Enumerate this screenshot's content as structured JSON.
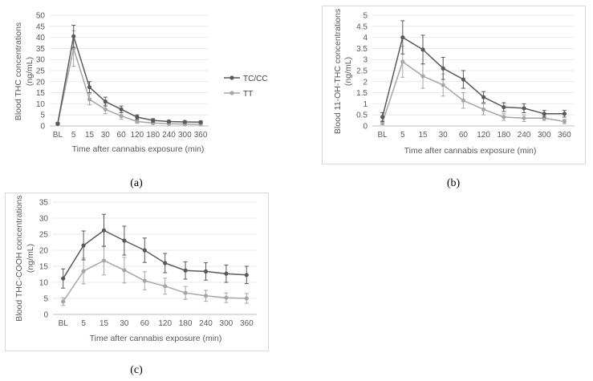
{
  "chart_data": [
    {
      "type": "line",
      "panel": "a",
      "caption": "(a)",
      "ylabel_lines": [
        "Blood THC concentrations",
        "(ng/mL)"
      ],
      "xlabel": "Time after cannabis exposure (min)",
      "categories": [
        "BL",
        "5",
        "15",
        "30",
        "60",
        "120",
        "180",
        "240",
        "300",
        "360"
      ],
      "ylim": [
        0,
        50
      ],
      "yticks": [
        0,
        5,
        10,
        15,
        20,
        25,
        30,
        35,
        40,
        45,
        50
      ],
      "legend": "right",
      "series": [
        {
          "name": "TC/CC",
          "color": "#595959",
          "values": [
            1,
            40.5,
            17.5,
            11,
            7.5,
            4,
            2.5,
            2,
            1.8,
            1.7
          ],
          "errors": [
            0.5,
            5,
            2.5,
            2,
            1.5,
            1,
            0.8,
            0.5,
            0.5,
            0.5
          ]
        },
        {
          "name": "TT",
          "color": "#a6a6a6",
          "values": [
            1,
            35,
            12,
            7.5,
            4.5,
            2,
            1.3,
            1,
            0.8,
            0.7
          ],
          "errors": [
            0.5,
            8,
            2.5,
            2,
            1.5,
            0.8,
            0.5,
            0.4,
            0.3,
            0.3
          ]
        }
      ]
    },
    {
      "type": "line",
      "panel": "b",
      "caption": "(b)",
      "ylabel_lines": [
        "Blood 11-OH-THC concentrations",
        "(ng/mL)"
      ],
      "xlabel": "Time after cannabis exposure (min)",
      "categories": [
        "BL",
        "5",
        "15",
        "30",
        "60",
        "120",
        "180",
        "240",
        "300",
        "360"
      ],
      "ylim": [
        0,
        5
      ],
      "yticks": [
        0,
        0.5,
        1,
        1.5,
        2,
        2.5,
        3,
        3.5,
        4,
        4.5,
        5
      ],
      "series": [
        {
          "name": "TC/CC",
          "color": "#595959",
          "values": [
            0.4,
            4,
            3.45,
            2.6,
            2.1,
            1.3,
            0.85,
            0.8,
            0.55,
            0.55
          ],
          "errors": [
            0.2,
            0.75,
            0.65,
            0.5,
            0.4,
            0.25,
            0.2,
            0.2,
            0.15,
            0.15
          ]
        },
        {
          "name": "TT",
          "color": "#a6a6a6",
          "values": [
            0.15,
            2.9,
            2.25,
            1.85,
            1.15,
            0.75,
            0.4,
            0.35,
            0.35,
            0.2
          ],
          "errors": [
            0.1,
            0.7,
            0.55,
            0.5,
            0.35,
            0.25,
            0.15,
            0.15,
            0.1,
            0.1
          ]
        }
      ]
    },
    {
      "type": "line",
      "panel": "c",
      "caption": "(c)",
      "ylabel_lines": [
        "Blood THC-COOH concentrations",
        "(ng/mL)"
      ],
      "xlabel": "Time after cannabis exposure (min)",
      "categories": [
        "BL",
        "5",
        "15",
        "30",
        "60",
        "120",
        "180",
        "240",
        "300",
        "360"
      ],
      "ylim": [
        0,
        35
      ],
      "yticks": [
        0,
        5,
        10,
        15,
        20,
        25,
        30,
        35
      ],
      "series": [
        {
          "name": "TC/CC",
          "color": "#595959",
          "values": [
            11.2,
            21.5,
            26.2,
            23,
            20,
            16,
            13.7,
            13.4,
            12.7,
            12.3
          ],
          "errors": [
            3,
            4.5,
            5,
            4.5,
            3.8,
            3,
            2.7,
            2.7,
            2.7,
            2.7
          ]
        },
        {
          "name": "TT",
          "color": "#a6a6a6",
          "values": [
            4,
            13.5,
            16.8,
            13.8,
            10.5,
            8.8,
            6.7,
            5.8,
            5.2,
            5
          ],
          "errors": [
            1.2,
            4,
            4.5,
            4,
            2.8,
            2.5,
            2,
            1.7,
            1.5,
            1.5
          ]
        }
      ]
    }
  ]
}
